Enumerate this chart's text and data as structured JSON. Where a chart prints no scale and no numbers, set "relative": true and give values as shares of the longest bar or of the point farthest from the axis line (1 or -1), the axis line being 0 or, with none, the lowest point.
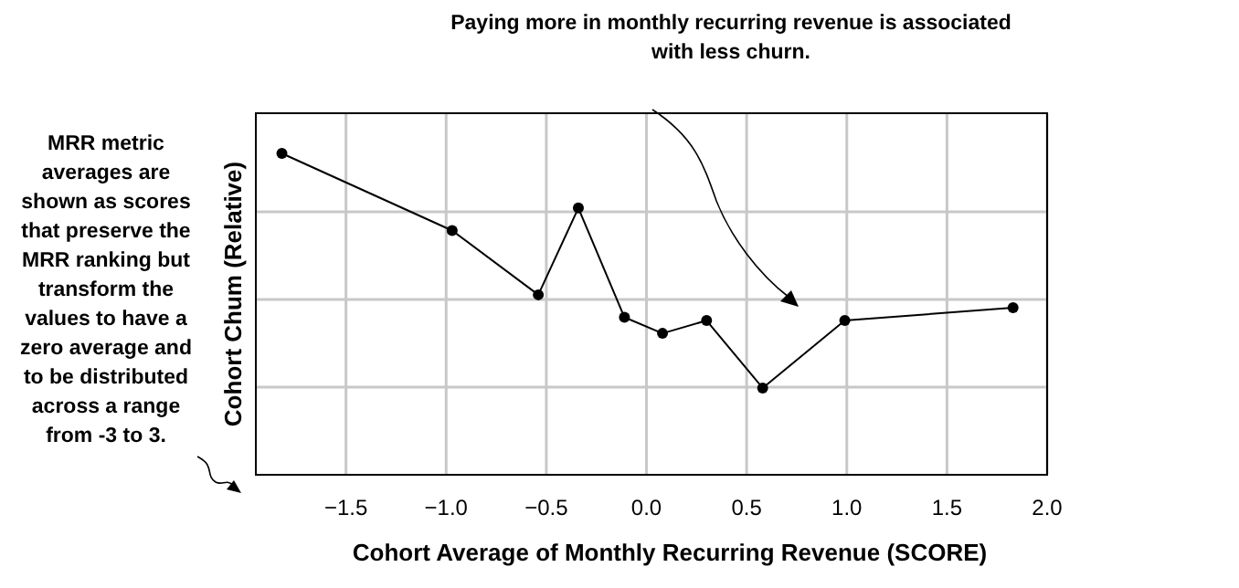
{
  "chart_data": {
    "type": "line",
    "relative": true,
    "xlabel": "Cohort Average of Monthly Recurring Revenue (SCORE)",
    "ylabel": "Cohort Chum (Relative)",
    "x": [
      -1.82,
      -0.97,
      -0.54,
      -0.34,
      -0.11,
      0.08,
      0.3,
      0.58,
      0.99,
      1.83
    ],
    "series": [
      {
        "color": "#000000",
        "values": [
          1,
          0.76,
          0.56,
          0.83,
          0.49,
          0.44,
          0.48,
          0.27,
          0.48,
          0.52
        ]
      }
    ],
    "xlim": [
      -1.95,
      2.0
    ],
    "xticks": [
      {
        "value": -1.5,
        "label": "−1.5"
      },
      {
        "value": -1,
        "label": "−1.0"
      },
      {
        "value": -0.5,
        "label": "−0.5"
      },
      {
        "value": 0,
        "label": "0.0"
      },
      {
        "value": 0.5,
        "label": "0.5"
      },
      {
        "value": 1,
        "label": "1.0"
      },
      {
        "value": 1.5,
        "label": "1.5"
      },
      {
        "value": 2,
        "label": "2.0"
      }
    ],
    "grid": true,
    "marker": "circle",
    "line_style": "solid",
    "annotations": [
      "Paying more in monthly recurring revenue is associated with less churn.",
      "MRR metric averages are shown as scores that preserve the MRR ranking but transform the values to have a zero average  and to be distributed across a range from -3 to 3."
    ]
  }
}
